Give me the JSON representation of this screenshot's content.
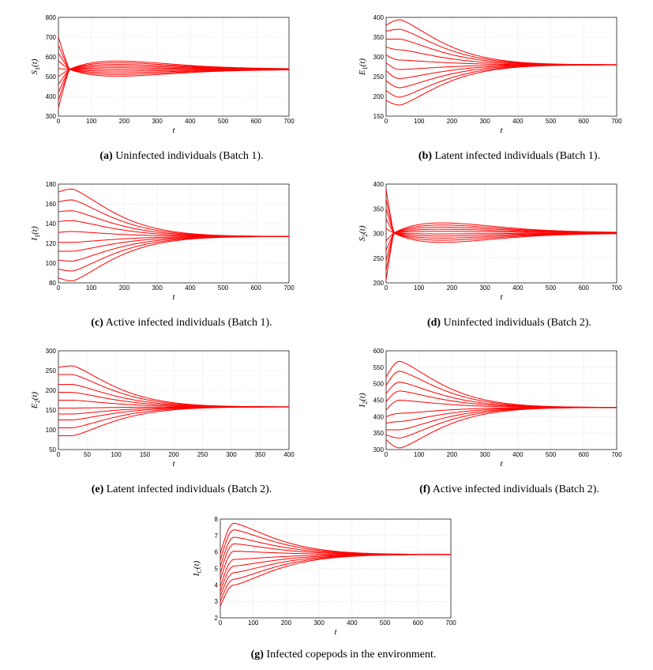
{
  "figure": {
    "panels": [
      {
        "id": "a",
        "caption_tag": "(a)",
        "caption_text": "Uninfected individuals (Batch 1)."
      },
      {
        "id": "b",
        "caption_tag": "(b)",
        "caption_text": "Latent infected individuals (Batch 1)."
      },
      {
        "id": "c",
        "caption_tag": "(c)",
        "caption_text": "Active infected individuals (Batch 1)."
      },
      {
        "id": "d",
        "caption_tag": "(d)",
        "caption_text": "Uninfected individuals (Batch 2)."
      },
      {
        "id": "e",
        "caption_tag": "(e)",
        "caption_text": "Latent infected individuals (Batch 2)."
      },
      {
        "id": "f",
        "caption_tag": "(f)",
        "caption_text": "Active infected individuals (Batch 2)."
      },
      {
        "id": "g",
        "caption_tag": "(g)",
        "caption_text": "Infected copepods in the environment."
      }
    ]
  },
  "chart_data": [
    {
      "id": "a",
      "type": "line",
      "xlabel": "t",
      "ylabel_base": "S",
      "ylabel_sub": "1",
      "ylabel_suffix": "(t)",
      "xlim": [
        0,
        700
      ],
      "ylim": [
        300,
        800
      ],
      "xticks": [
        0,
        100,
        200,
        300,
        400,
        500,
        600,
        700
      ],
      "yticks": [
        300,
        400,
        500,
        600,
        700,
        800
      ],
      "equilibrium": 537,
      "initial": [
        340,
        380,
        420,
        460,
        500,
        540,
        580,
        620,
        660,
        700
      ],
      "crossing": {
        "t": 33,
        "y": 537
      },
      "series_count": 10,
      "color": "#ff0000"
    },
    {
      "id": "b",
      "type": "line",
      "xlabel": "t",
      "ylabel_base": "E",
      "ylabel_sub": "1",
      "ylabel_suffix": "(t)",
      "xlim": [
        0,
        700
      ],
      "ylim": [
        150,
        400
      ],
      "xticks": [
        0,
        100,
        200,
        300,
        400,
        500,
        600,
        700
      ],
      "yticks": [
        150,
        200,
        250,
        300,
        350,
        400
      ],
      "equilibrium": 280,
      "initial": [
        190,
        215,
        240,
        265,
        285,
        305,
        325,
        345,
        365,
        380
      ],
      "peaks": [
        178,
        198,
        222,
        245,
        268,
        292,
        318,
        345,
        370,
        394
      ],
      "series_count": 10,
      "color": "#ff0000"
    },
    {
      "id": "c",
      "type": "line",
      "xlabel": "t",
      "ylabel_base": "I",
      "ylabel_sub": "1",
      "ylabel_suffix": "(t)",
      "xlim": [
        0,
        700
      ],
      "ylim": [
        80,
        180
      ],
      "xticks": [
        0,
        100,
        200,
        300,
        400,
        500,
        600,
        700
      ],
      "yticks": [
        80,
        100,
        120,
        140,
        160,
        180
      ],
      "equilibrium": 127,
      "initial": [
        85,
        94,
        103,
        112,
        121,
        131,
        142,
        152,
        162,
        172
      ],
      "peaks": [
        82,
        92,
        102,
        112,
        121,
        132,
        143,
        153,
        164,
        175
      ],
      "series_count": 10,
      "color": "#ff0000"
    },
    {
      "id": "d",
      "type": "line",
      "xlabel": "t",
      "ylabel_base": "S",
      "ylabel_sub": "2",
      "ylabel_suffix": "(t)",
      "xlim": [
        0,
        700
      ],
      "ylim": [
        200,
        400
      ],
      "xticks": [
        0,
        100,
        200,
        300,
        400,
        500,
        600,
        700
      ],
      "yticks": [
        200,
        250,
        300,
        350,
        400
      ],
      "equilibrium": 301,
      "initial": [
        205,
        225,
        245,
        265,
        285,
        310,
        330,
        350,
        370,
        390
      ],
      "crossing": {
        "t": 23,
        "y": 301
      },
      "series_count": 10,
      "color": "#ff0000"
    },
    {
      "id": "e",
      "type": "line",
      "xlabel": "t",
      "ylabel_base": "E",
      "ylabel_sub": "2",
      "ylabel_suffix": "(t)",
      "xlim": [
        0,
        400
      ],
      "ylim": [
        50,
        300
      ],
      "xticks": [
        0,
        50,
        100,
        150,
        200,
        250,
        300,
        350,
        400
      ],
      "yticks": [
        50,
        100,
        150,
        200,
        250,
        300
      ],
      "equilibrium": 158,
      "initial": [
        85,
        105,
        125,
        140,
        155,
        175,
        195,
        215,
        240,
        258
      ],
      "peaks": [
        85,
        105,
        125,
        140,
        155,
        175,
        195,
        215,
        240,
        262
      ],
      "series_count": 10,
      "color": "#ff0000"
    },
    {
      "id": "f",
      "type": "line",
      "xlabel": "t",
      "ylabel_base": "I",
      "ylabel_sub": "2",
      "ylabel_suffix": "(t)",
      "xlim": [
        0,
        700
      ],
      "ylim": [
        300,
        600
      ],
      "xticks": [
        0,
        100,
        200,
        300,
        400,
        500,
        600,
        700
      ],
      "yticks": [
        300,
        350,
        400,
        450,
        500,
        550,
        600
      ],
      "equilibrium": 428,
      "initial": [
        330,
        345,
        360,
        380,
        400,
        420,
        445,
        470,
        495,
        520
      ],
      "peaks": [
        305,
        335,
        360,
        385,
        410,
        450,
        478,
        505,
        538,
        568
      ],
      "series_count": 10,
      "color": "#ff0000"
    },
    {
      "id": "g",
      "type": "line",
      "xlabel": "t",
      "ylabel_base": "I",
      "ylabel_sub": "C",
      "ylabel_suffix": "(t)",
      "xlim": [
        0,
        700
      ],
      "ylim": [
        2,
        8
      ],
      "xticks": [
        0,
        100,
        200,
        300,
        400,
        500,
        600,
        700
      ],
      "yticks": [
        2,
        3,
        4,
        5,
        6,
        7,
        8
      ],
      "equilibrium": 5.85,
      "initial": [
        2.7,
        3.0,
        3.3,
        3.6,
        3.9,
        4.3,
        4.7,
        5.1,
        5.5,
        5.9
      ],
      "peaks": [
        4.0,
        4.35,
        4.75,
        5.15,
        5.55,
        6.05,
        6.5,
        6.9,
        7.35,
        7.75
      ],
      "series_count": 10,
      "color": "#ff0000"
    }
  ]
}
